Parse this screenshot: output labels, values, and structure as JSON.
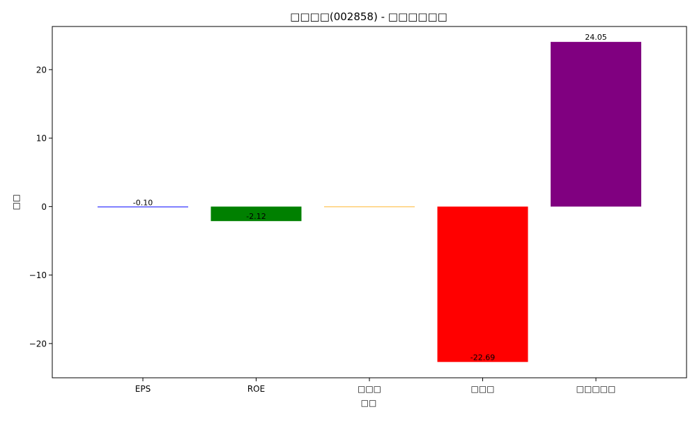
{
  "chart_data": {
    "type": "bar",
    "title": "□□□□(002858) - □□□□□□",
    "xlabel": "□□",
    "ylabel": "□□",
    "categories": [
      "EPS",
      "ROE",
      "□□□",
      "□□□",
      "□□□□□"
    ],
    "values": [
      -0.1,
      -2.12,
      0,
      -22.69,
      24.05
    ],
    "value_labels": [
      "-0.10",
      "-2.12",
      "",
      "-22.69",
      "24.05"
    ],
    "colors": [
      "#0000ff",
      "#008000",
      "#ffa500",
      "#ff0000",
      "#800080"
    ],
    "ylim": [
      -25.0,
      26.3
    ],
    "yticks": [
      -20,
      -10,
      0,
      10,
      20
    ],
    "ytick_labels": [
      "−20",
      "−10",
      "0",
      "10",
      "20"
    ],
    "grid": false,
    "legend": "none"
  }
}
